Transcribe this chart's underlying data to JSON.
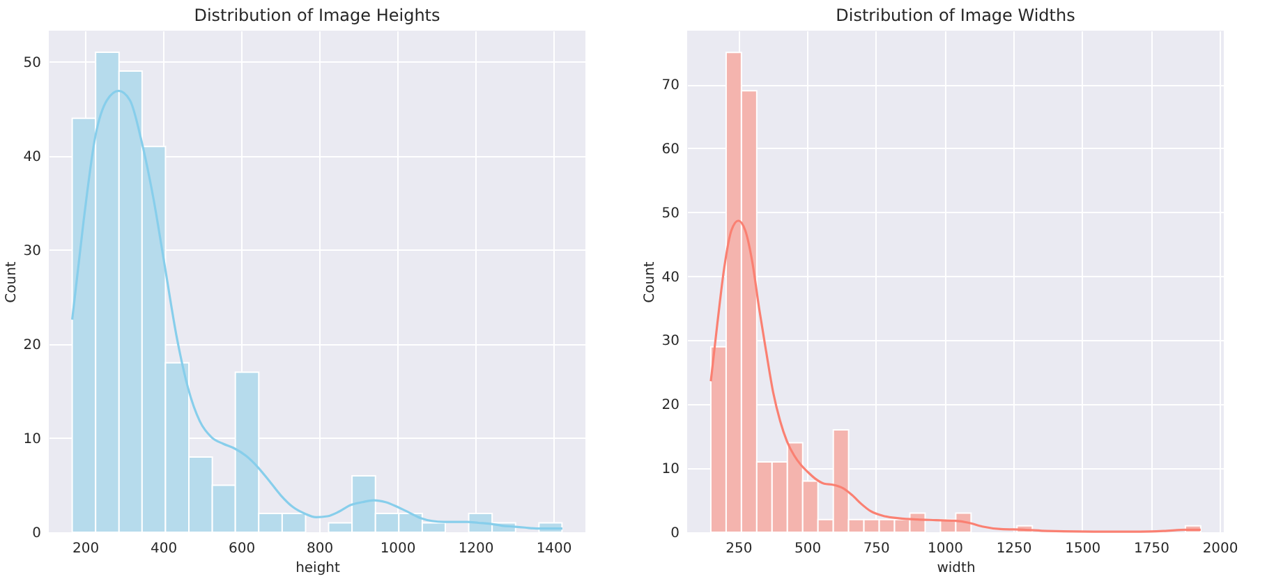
{
  "chart_data": [
    {
      "type": "histogram",
      "title": "Distribution of Image Heights",
      "xlabel": "height",
      "ylabel": "Count",
      "color": "#b6dbec",
      "bins": [
        167,
        227,
        287,
        346,
        406,
        466,
        526,
        585,
        645,
        705,
        765,
        824,
        884,
        944,
        1004,
        1064,
        1123,
        1183,
        1243,
        1303,
        1363,
        1422
      ],
      "values": [
        44,
        51,
        49,
        41,
        18,
        8,
        5,
        17,
        2,
        2,
        0,
        1,
        6,
        2,
        2,
        1,
        0,
        2,
        1,
        0,
        1
      ],
      "series": [
        {
          "type": "line",
          "color": "#87ceeb",
          "x": [
            167,
            196,
            226,
            256,
            286,
            315,
            345,
            375,
            405,
            435,
            464,
            494,
            524,
            554,
            583,
            613,
            643,
            673,
            702,
            732,
            762,
            792,
            821,
            851,
            881,
            911,
            940,
            970,
            1000,
            1030,
            1060,
            1089,
            1119,
            1149,
            1179,
            1208,
            1238,
            1268,
            1298,
            1327,
            1357,
            1387,
            1423
          ],
          "values": [
            22.6,
            33,
            42,
            45.9,
            46.9,
            45.9,
            41.5,
            35.5,
            28.1,
            20.7,
            15.3,
            11.8,
            10.1,
            9.4,
            8.9,
            8.1,
            6.9,
            5.4,
            3.9,
            2.7,
            2.0,
            1.6,
            1.7,
            2.2,
            2.9,
            3.2,
            3.4,
            3.2,
            2.7,
            2.1,
            1.5,
            1.2,
            1.1,
            1.1,
            1.1,
            1.0,
            0.9,
            0.7,
            0.6,
            0.5,
            0.4,
            0.4,
            0.4
          ]
        }
      ],
      "xlim": [
        107,
        1482
      ],
      "xticks": [
        200,
        400,
        600,
        800,
        1000,
        1200,
        1400
      ],
      "ylim": [
        0,
        53.3
      ],
      "yticks": [
        0,
        10,
        20,
        30,
        40,
        50
      ],
      "grid": true
    },
    {
      "type": "histogram",
      "title": "Distribution of Image Widths",
      "xlabel": "width",
      "ylabel": "Count",
      "color": "#f4b4ae",
      "bins": [
        150,
        205.7,
        261.3,
        317,
        372.6,
        428.3,
        484,
        539.6,
        595.3,
        650.9,
        706.6,
        762.3,
        817.9,
        873.6,
        929.2,
        984.9,
        1040.6,
        1096.2,
        1151.9,
        1207.5,
        1263.2,
        1318.9,
        1374.5,
        1430.2,
        1485.8,
        1541.5,
        1597.2,
        1652.8,
        1708.5,
        1764.1,
        1819.8,
        1875.5,
        1931
      ],
      "values": [
        29,
        75,
        69,
        11,
        11,
        14,
        8,
        2,
        16,
        2,
        2,
        2,
        2,
        3,
        0,
        2,
        3,
        0,
        0,
        0,
        1,
        0,
        0,
        0,
        0,
        0,
        0,
        0,
        0,
        0,
        0,
        1
      ],
      "series": [
        {
          "type": "line",
          "color": "#fa8072",
          "x": [
            150,
            174,
            199,
            225,
            250,
            275,
            301,
            326,
            351,
            377,
            402,
            427,
            453,
            478,
            503,
            529,
            562,
            596,
            630,
            664,
            698,
            731,
            782,
            833,
            900,
            968,
            1035,
            1086,
            1137,
            1204,
            1289,
            1373,
            1542,
            1711,
            1796,
            1880,
            1931
          ],
          "values": [
            23.6,
            32.7,
            41.4,
            47.2,
            48.7,
            47.2,
            42.2,
            34.9,
            28.3,
            21.8,
            17.4,
            14.2,
            12.0,
            10.5,
            9.4,
            8.4,
            7.6,
            7.4,
            6.9,
            5.8,
            4.4,
            3.3,
            2.5,
            2.2,
            2.0,
            1.9,
            1.8,
            1.5,
            0.9,
            0.5,
            0.4,
            0.2,
            0.1,
            0.1,
            0.2,
            0.4,
            0.4
          ]
        }
      ],
      "xlim": [
        64,
        2015
      ],
      "xticks": [
        250,
        500,
        750,
        1000,
        1250,
        1500,
        1750,
        2000
      ],
      "ylim": [
        0,
        78.4
      ],
      "yticks": [
        0,
        10,
        20,
        30,
        40,
        50,
        60,
        70
      ],
      "grid": true
    }
  ]
}
